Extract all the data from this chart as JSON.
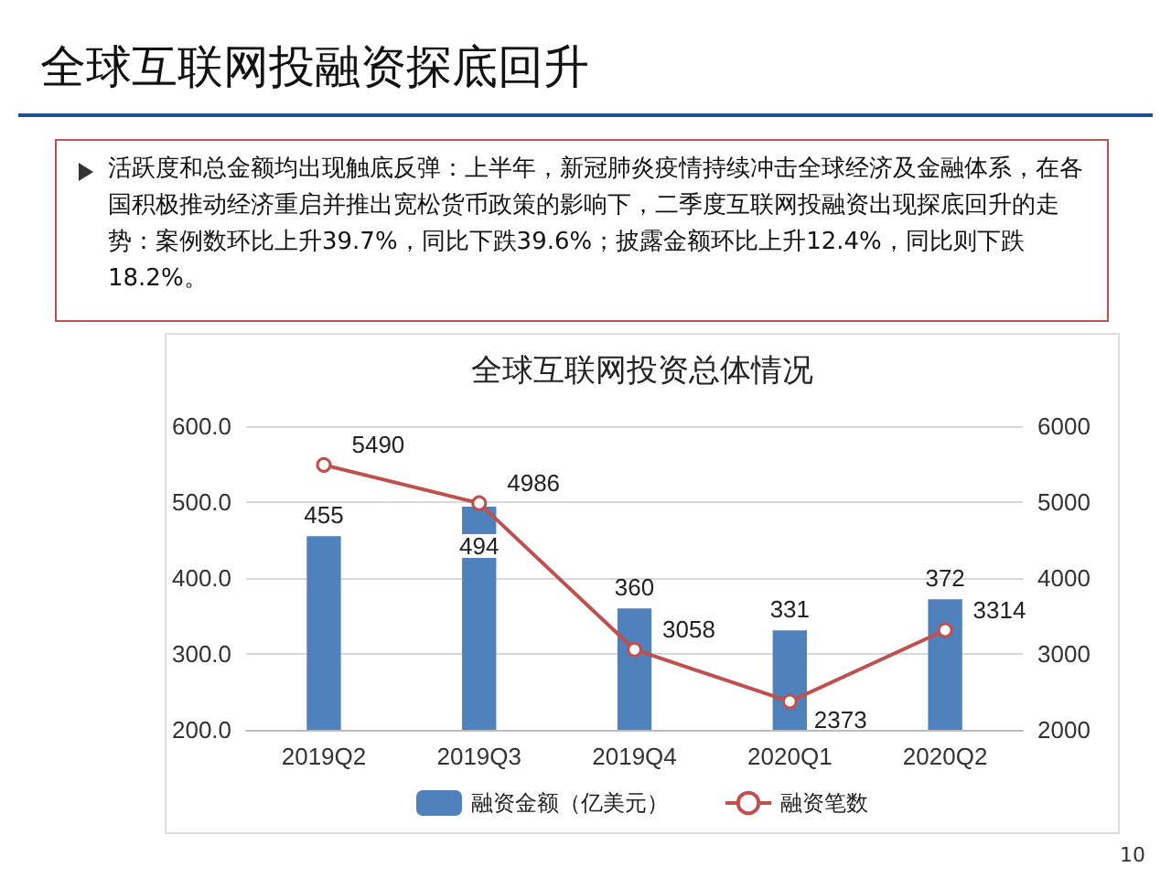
{
  "chart_data": {
    "type": "bar",
    "title": "全球互联网投资总体情况",
    "annotations": [
      "全球互联网投融资探底回升",
      "活跃度和总金额均出现触底反弹：上半年，新冠肺炎疫情持续冲击全球经济及金融体系，在各国积极推动经济重启并推出宽松货币政策的影响下，二季度互联网投融资出现探底回升的走势：案例数环比上升39.7%，同比下跌39.6%；披露金额环比上升12.4%，同比则下跌18.2%。",
      "10"
    ],
    "categories": [
      "2019Q2",
      "2019Q3",
      "2019Q4",
      "2020Q1",
      "2020Q2"
    ],
    "series": [
      {
        "name": "融资金额（亿美元）",
        "color": "#4f81bd",
        "values": [
          455,
          494,
          360,
          331,
          372
        ]
      },
      {
        "name": "融资笔数",
        "type": "line",
        "axis": "y2",
        "color": "#c0504d",
        "marker": "circle",
        "values": [
          5490,
          4986,
          3058,
          2373,
          3314
        ]
      }
    ],
    "ylim": [
      200,
      600
    ],
    "yticks": [
      {
        "value": 200,
        "label": "200.0"
      },
      {
        "value": 300,
        "label": "300.0"
      },
      {
        "value": 400,
        "label": "400.0"
      },
      {
        "value": 500,
        "label": "500.0"
      },
      {
        "value": 600,
        "label": "600.0"
      }
    ],
    "y2lim": [
      2000,
      6000
    ],
    "y2ticks": [
      2000,
      3000,
      4000,
      5000,
      6000
    ],
    "grid": "y",
    "legend": "bottom",
    "data_labels": true
  }
}
